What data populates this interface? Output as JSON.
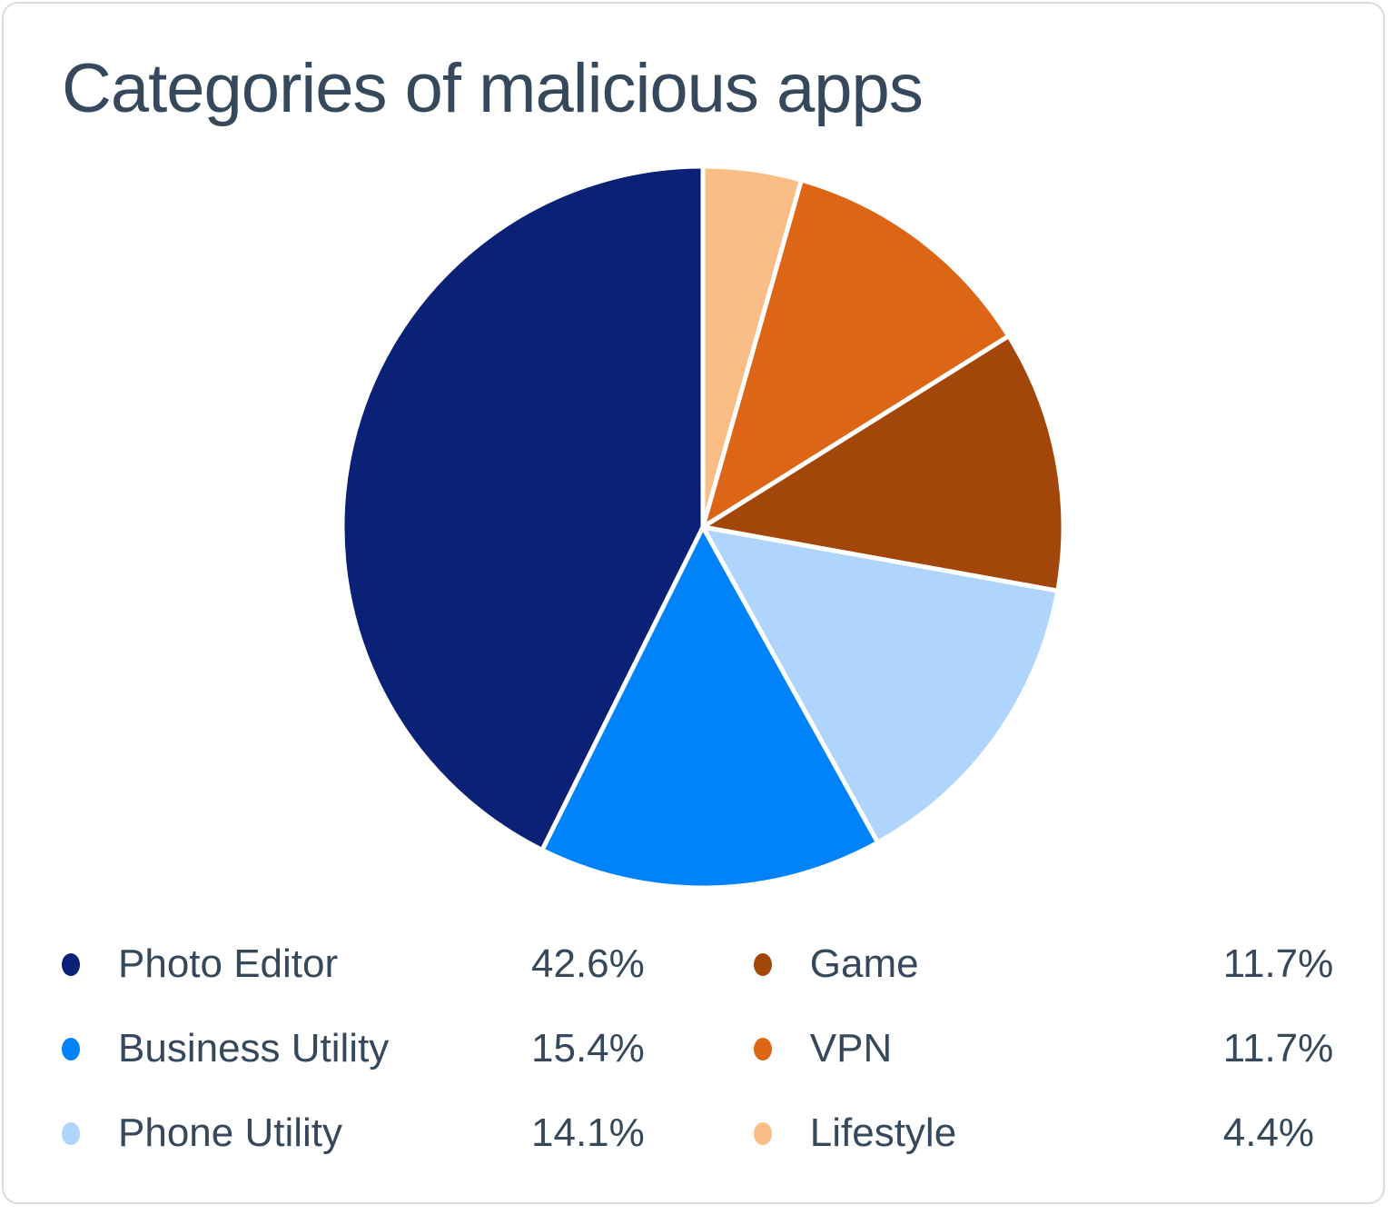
{
  "header": {
    "title": "Categories of malicious apps"
  },
  "chart_data": {
    "type": "pie",
    "title": "Categories of malicious apps",
    "slices": [
      {
        "label": "Photo Editor",
        "value": 42.6,
        "display": "42.6%",
        "color": "#0A2175"
      },
      {
        "label": "Business Utility",
        "value": 15.4,
        "display": "15.4%",
        "color": "#0082FB"
      },
      {
        "label": "Phone Utility",
        "value": 14.1,
        "display": "14.1%",
        "color": "#AFD4FE"
      },
      {
        "label": "Game",
        "value": 11.7,
        "display": "11.7%",
        "color": "#A3460A"
      },
      {
        "label": "VPN",
        "value": 11.7,
        "display": "11.7%",
        "color": "#DC6615"
      },
      {
        "label": "Lifestyle",
        "value": 4.4,
        "display": "4.4%",
        "color": "#F9BD85"
      }
    ],
    "start_angle_deg": -90,
    "winding_from_first_slice": "counterclockwise",
    "slice_stroke_color": "#FFFFFF",
    "slice_stroke_width": 5,
    "legend_position": "bottom",
    "legend_columns": 2,
    "legend_fill_order": "column-major"
  },
  "colors": {
    "text": "#36485C",
    "card_border": "#D7DCE2",
    "background": "#FFFFFF"
  }
}
